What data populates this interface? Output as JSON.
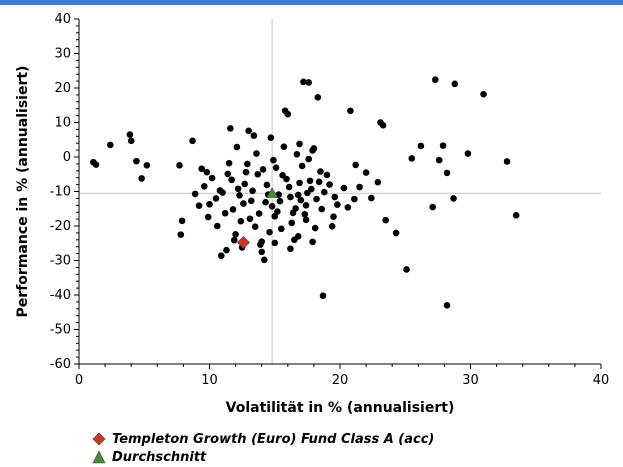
{
  "colors": {
    "cloud": "#000000",
    "fund": "#c0392b",
    "average": "#4b8a3b",
    "crosshair": "#c8c8c8",
    "topbar": "#3a7bd5"
  },
  "chart_data": {
    "type": "scatter",
    "xlabel": "Volatilität in % (annualisiert)",
    "ylabel": "Performance in % (annualisiert)",
    "xlim": [
      0,
      40
    ],
    "ylim": [
      -60,
      40
    ],
    "xticks": [
      "0",
      "10",
      "20",
      "30",
      "40"
    ],
    "yticks": [
      "40",
      "30",
      "20",
      "10",
      "0",
      "-10",
      "-20",
      "-30",
      "-40",
      "-50",
      "-60"
    ],
    "grid": false,
    "legend_position": "bottom-left",
    "crosshair": {
      "x": 14.8,
      "y": -10.5
    },
    "series": [
      {
        "name": "",
        "marker": "circle",
        "points": [
          [
            1.1,
            -1.5
          ],
          [
            1.3,
            -2.2
          ],
          [
            2.4,
            3.5
          ],
          [
            3.9,
            6.5
          ],
          [
            4.0,
            4.7
          ],
          [
            4.4,
            -1.2
          ],
          [
            4.8,
            -6.2
          ],
          [
            5.2,
            -2.4
          ],
          [
            7.7,
            -2.4
          ],
          [
            7.9,
            -18.5
          ],
          [
            7.8,
            -22.5
          ],
          [
            8.7,
            4.7
          ],
          [
            9.4,
            -3.4
          ],
          [
            9.8,
            -4.4
          ],
          [
            10.6,
            -20.0
          ],
          [
            10.9,
            -28.6
          ],
          [
            11.3,
            -27.0
          ],
          [
            11.6,
            8.3
          ],
          [
            12.2,
            -9.2
          ],
          [
            12.7,
            -7.8
          ],
          [
            12.1,
            2.9
          ],
          [
            13.0,
            7.6
          ],
          [
            13.4,
            6.2
          ],
          [
            13.7,
            -5.0
          ],
          [
            14.0,
            -24.5
          ],
          [
            14.2,
            -29.8
          ],
          [
            14.8,
            -14.3
          ],
          [
            15.1,
            -3.1
          ],
          [
            15.5,
            -20.8
          ],
          [
            15.8,
            13.4
          ],
          [
            16.0,
            12.4
          ],
          [
            16.2,
            -11.6
          ],
          [
            16.5,
            -24.0
          ],
          [
            16.9,
            -7.5
          ],
          [
            17.2,
            21.8
          ],
          [
            17.4,
            -18.2
          ],
          [
            17.6,
            21.6
          ],
          [
            17.9,
            1.9
          ],
          [
            18.3,
            17.3
          ],
          [
            18.6,
            -15.1
          ],
          [
            19.0,
            -5.2
          ],
          [
            19.4,
            -20.1
          ],
          [
            19.8,
            -13.8
          ],
          [
            18.7,
            -40.2
          ],
          [
            20.8,
            13.4
          ],
          [
            21.2,
            -2.3
          ],
          [
            21.5,
            -8.7
          ],
          [
            22.0,
            -4.5
          ],
          [
            22.4,
            -11.9
          ],
          [
            23.1,
            10.0
          ],
          [
            23.3,
            9.2
          ],
          [
            23.5,
            -18.3
          ],
          [
            24.3,
            -22.0
          ],
          [
            25.1,
            -32.6
          ],
          [
            25.5,
            -0.4
          ],
          [
            26.2,
            3.2
          ],
          [
            27.1,
            -14.5
          ],
          [
            27.3,
            22.4
          ],
          [
            27.6,
            -0.9
          ],
          [
            27.9,
            3.3
          ],
          [
            28.2,
            -4.6
          ],
          [
            28.2,
            -43.0
          ],
          [
            28.7,
            -12.0
          ],
          [
            28.8,
            21.2
          ],
          [
            29.8,
            1.0
          ],
          [
            31.0,
            18.2
          ],
          [
            32.8,
            -1.3
          ],
          [
            33.5,
            -16.9
          ],
          [
            10.5,
            -12.0
          ],
          [
            11.8,
            -15.2
          ],
          [
            12.4,
            -18.6
          ],
          [
            13.2,
            -12.7
          ],
          [
            13.8,
            -16.4
          ],
          [
            14.4,
            -8.1
          ],
          [
            15.3,
            -10.9
          ],
          [
            15.9,
            -6.4
          ],
          [
            16.6,
            -14.9
          ],
          [
            17.1,
            -2.6
          ],
          [
            17.8,
            -9.3
          ],
          [
            18.2,
            -12.2
          ],
          [
            9.6,
            -8.5
          ],
          [
            10.2,
            -6.1
          ],
          [
            11.0,
            -10.3
          ],
          [
            11.4,
            -4.9
          ],
          [
            12.0,
            -22.4
          ],
          [
            12.9,
            -2.0
          ],
          [
            13.5,
            -20.2
          ],
          [
            14.1,
            -3.6
          ],
          [
            14.6,
            -21.8
          ],
          [
            15.0,
            -17.2
          ],
          [
            15.6,
            -5.3
          ],
          [
            16.3,
            -19.1
          ],
          [
            16.8,
            -11.0
          ],
          [
            17.3,
            -16.6
          ],
          [
            17.7,
            -6.9
          ],
          [
            18.1,
            -20.6
          ],
          [
            18.8,
            -10.2
          ],
          [
            19.2,
            -8.0
          ],
          [
            9.2,
            -14.1
          ],
          [
            9.9,
            -17.4
          ],
          [
            10.8,
            -9.7
          ],
          [
            11.7,
            -6.6
          ],
          [
            12.6,
            -13.5
          ],
          [
            13.3,
            -9.8
          ],
          [
            14.3,
            -13.1
          ],
          [
            15.2,
            -15.8
          ],
          [
            16.1,
            -8.7
          ],
          [
            17.0,
            -12.5
          ],
          [
            17.5,
            -10.4
          ],
          [
            18.4,
            -7.2
          ],
          [
            19.6,
            -11.6
          ],
          [
            20.3,
            -9.0
          ],
          [
            8.9,
            -10.7
          ],
          [
            10.0,
            -13.7
          ],
          [
            11.2,
            -16.3
          ],
          [
            12.3,
            -11.1
          ],
          [
            13.1,
            -17.9
          ],
          [
            14.5,
            -10.9
          ],
          [
            15.4,
            -12.8
          ],
          [
            16.4,
            -16.2
          ],
          [
            17.4,
            -14.0
          ],
          [
            18.5,
            -4.2
          ],
          [
            11.5,
            -1.8
          ],
          [
            12.8,
            -4.4
          ],
          [
            14.9,
            -0.9
          ],
          [
            16.7,
            0.8
          ],
          [
            17.6,
            -0.6
          ],
          [
            13.6,
            1.0
          ],
          [
            15.7,
            3.0
          ],
          [
            16.9,
            3.8
          ],
          [
            18.0,
            2.5
          ],
          [
            14.7,
            5.6
          ],
          [
            12.5,
            -26.2
          ],
          [
            13.9,
            -25.4
          ],
          [
            15.0,
            -24.9
          ],
          [
            16.2,
            -26.6
          ],
          [
            14.0,
            -27.5
          ],
          [
            11.9,
            -24.1
          ],
          [
            16.8,
            -23.0
          ],
          [
            17.9,
            -24.6
          ],
          [
            19.5,
            -17.3
          ],
          [
            20.6,
            -14.6
          ],
          [
            21.1,
            -12.2
          ],
          [
            22.9,
            -7.3
          ]
        ]
      },
      {
        "name": "Templeton Growth (Euro) Fund Class A (acc)",
        "marker": "diamond",
        "points": [
          [
            12.6,
            -24.8
          ]
        ]
      },
      {
        "name": "Durchschnitt",
        "marker": "triangle",
        "points": [
          [
            14.8,
            -10.5
          ]
        ]
      }
    ]
  },
  "legend": {
    "items": [
      {
        "label": "Templeton Growth (Euro) Fund Class A (acc)",
        "marker": "diamond"
      },
      {
        "label": "Durchschnitt",
        "marker": "triangle"
      }
    ]
  }
}
